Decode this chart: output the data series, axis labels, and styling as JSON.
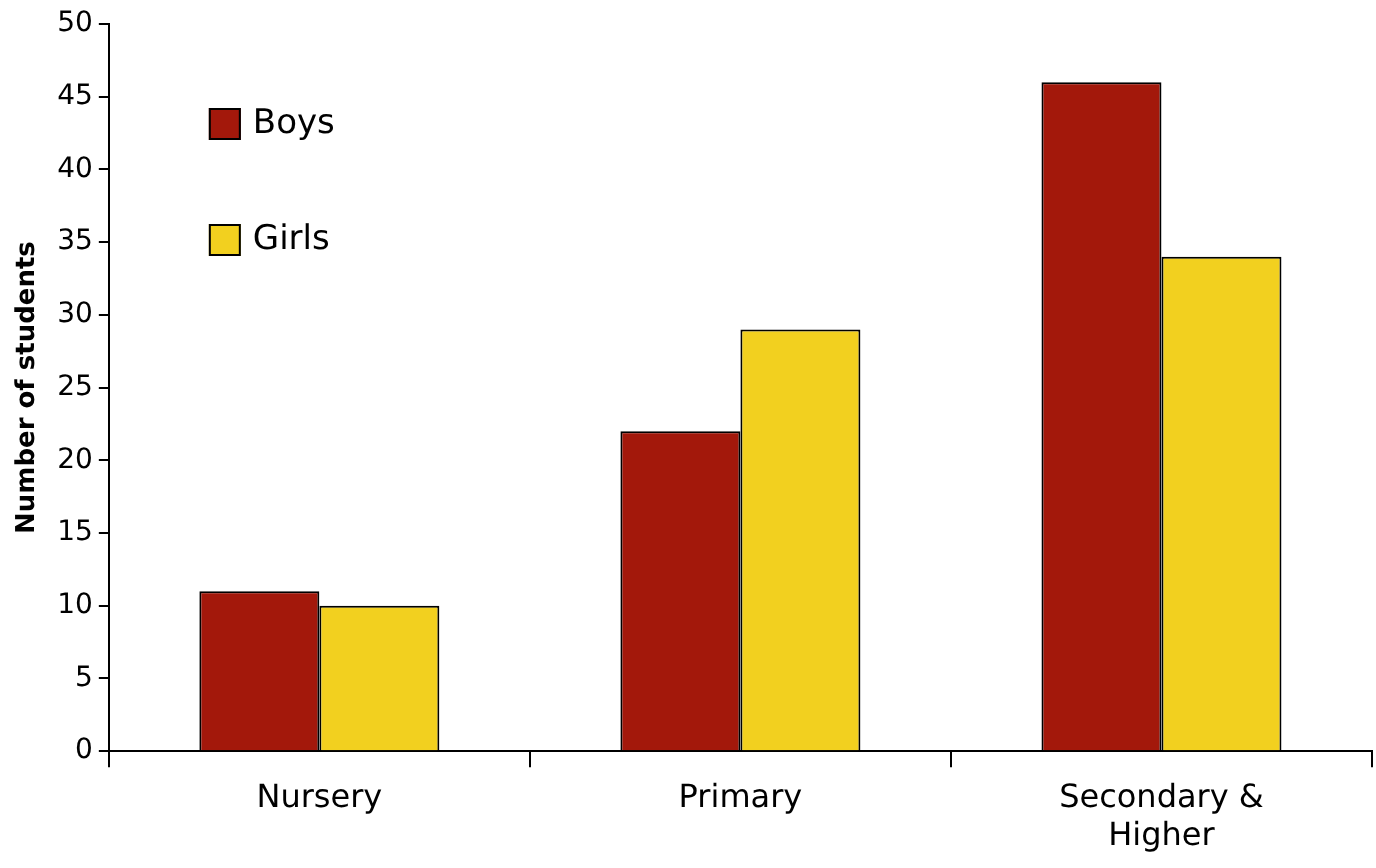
{
  "chart_data": {
    "type": "bar",
    "ylabel": "Number of students",
    "categories": [
      "Nursery",
      "Primary",
      "Secondary & Higher"
    ],
    "series": [
      {
        "name": "Boys",
        "color": "#a3180b",
        "values": [
          11,
          22,
          46
        ]
      },
      {
        "name": "Girls",
        "color": "#f2d01f",
        "values": [
          10,
          29,
          34
        ]
      }
    ],
    "ylim": [
      0,
      50
    ],
    "yticks": [
      0,
      5,
      10,
      15,
      20,
      25,
      30,
      35,
      40,
      45,
      50
    ],
    "grid": false,
    "legend": "top left"
  }
}
